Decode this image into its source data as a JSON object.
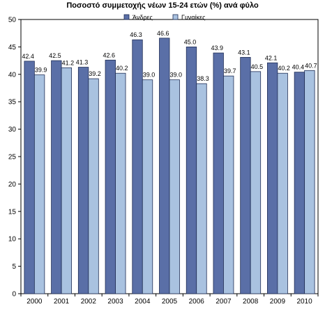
{
  "chart_data": {
    "type": "bar",
    "title": "Ποσοστό συμμετοχής νέων 15-24 ετών (%)  ανά φύλο",
    "xlabel": "",
    "ylabel": "",
    "categories": [
      "2000",
      "2001",
      "2002",
      "2003",
      "2004",
      "2005",
      "2006",
      "2007",
      "2008",
      "2009",
      "2010"
    ],
    "series": [
      {
        "name": "Άνδρες",
        "color": "#5a6fa7",
        "values": [
          42.4,
          42.5,
          41.3,
          42.6,
          46.3,
          46.6,
          45.0,
          43.9,
          43.1,
          42.1,
          40.4
        ],
        "labels": [
          "42.4",
          "42.5",
          "41.3",
          "42.6",
          "46.3",
          "46.6",
          "45.0",
          "43.9",
          "43.1",
          "42.1",
          "40.4"
        ]
      },
      {
        "name": "Γυναίκες",
        "color": "#a9c2e0",
        "values": [
          39.9,
          41.2,
          39.2,
          40.2,
          39.0,
          39.0,
          38.3,
          39.7,
          40.5,
          40.2,
          40.7
        ],
        "labels": [
          "39.9",
          "41.2",
          "39.2",
          "40.2",
          "39.0",
          "39.0",
          "38.3",
          "39.7",
          "40.5",
          "40.2",
          "40.7"
        ]
      }
    ],
    "ylim": [
      0,
      50
    ],
    "yticks": [
      0,
      5,
      10,
      15,
      20,
      25,
      30,
      35,
      40,
      45,
      50
    ],
    "grid": false,
    "legend": "top-center"
  }
}
